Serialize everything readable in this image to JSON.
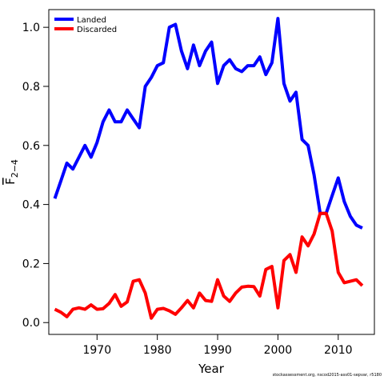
{
  "chart_data": {
    "type": "line",
    "xlabel": "Year",
    "ylabel_main": "F",
    "ylabel_sub": "2−4",
    "xlim": [
      1962,
      2016
    ],
    "ylim": [
      -0.04,
      1.06
    ],
    "x_ticks": [
      1970,
      1980,
      1990,
      2000,
      2010
    ],
    "y_ticks": [
      0.0,
      0.2,
      0.4,
      0.6,
      0.8,
      1.0
    ],
    "y_tick_labels": [
      "0.0",
      "0.2",
      "0.4",
      "0.6",
      "0.8",
      "1.0"
    ],
    "grid": false,
    "legend_position": "top-left",
    "series": [
      {
        "name": "Landed",
        "color": "#0000ff",
        "x": [
          1963,
          1964,
          1965,
          1966,
          1967,
          1968,
          1969,
          1970,
          1971,
          1972,
          1973,
          1974,
          1975,
          1976,
          1977,
          1978,
          1979,
          1980,
          1981,
          1982,
          1983,
          1984,
          1985,
          1986,
          1987,
          1988,
          1989,
          1990,
          1991,
          1992,
          1993,
          1994,
          1995,
          1996,
          1997,
          1998,
          1999,
          2000,
          2001,
          2002,
          2003,
          2004,
          2005,
          2006,
          2007,
          2008,
          2009,
          2010,
          2011,
          2012,
          2013,
          2014
        ],
        "values": [
          0.42,
          0.48,
          0.54,
          0.52,
          0.56,
          0.6,
          0.56,
          0.61,
          0.68,
          0.72,
          0.68,
          0.68,
          0.72,
          0.69,
          0.66,
          0.8,
          0.83,
          0.87,
          0.88,
          1.0,
          1.01,
          0.92,
          0.86,
          0.94,
          0.87,
          0.92,
          0.95,
          0.81,
          0.87,
          0.89,
          0.86,
          0.85,
          0.87,
          0.87,
          0.9,
          0.84,
          0.88,
          1.03,
          0.81,
          0.75,
          0.78,
          0.62,
          0.6,
          0.5,
          0.37,
          0.37,
          0.43,
          0.49,
          0.41,
          0.36,
          0.33,
          0.32
        ]
      },
      {
        "name": "Discarded",
        "color": "#ff0000",
        "x": [
          1963,
          1964,
          1965,
          1966,
          1967,
          1968,
          1969,
          1970,
          1971,
          1972,
          1973,
          1974,
          1975,
          1976,
          1977,
          1978,
          1979,
          1980,
          1981,
          1982,
          1983,
          1984,
          1985,
          1986,
          1987,
          1988,
          1989,
          1990,
          1991,
          1992,
          1993,
          1994,
          1995,
          1996,
          1997,
          1998,
          1999,
          2000,
          2001,
          2002,
          2003,
          2004,
          2005,
          2006,
          2007,
          2008,
          2009,
          2010,
          2011,
          2012,
          2013,
          2014
        ],
        "values": [
          0.045,
          0.035,
          0.02,
          0.045,
          0.05,
          0.045,
          0.06,
          0.045,
          0.047,
          0.065,
          0.095,
          0.055,
          0.07,
          0.14,
          0.145,
          0.1,
          0.015,
          0.045,
          0.048,
          0.04,
          0.028,
          0.05,
          0.075,
          0.05,
          0.1,
          0.075,
          0.072,
          0.145,
          0.09,
          0.072,
          0.1,
          0.12,
          0.123,
          0.122,
          0.09,
          0.18,
          0.19,
          0.05,
          0.21,
          0.23,
          0.17,
          0.29,
          0.26,
          0.3,
          0.37,
          0.37,
          0.31,
          0.17,
          0.135,
          0.14,
          0.145,
          0.125
        ]
      }
    ]
  },
  "footer": "stockassessment.org, nscod2015-ass01-sepvar, r5180"
}
